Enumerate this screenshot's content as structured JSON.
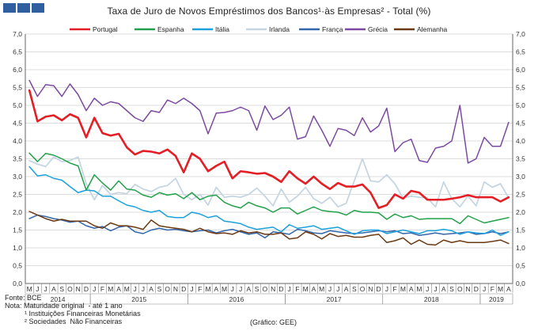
{
  "logo": {
    "icon": "bank-logo-icon",
    "color": "#2f5f9e"
  },
  "chart_data": {
    "type": "line",
    "title": "Taxa de Juro de Novos Empréstimos dos Bancos¹·às Empresas² - Total (%)",
    "y_ticks": [
      "0,0",
      "0,5",
      "1,0",
      "1,5",
      "2,0",
      "2,5",
      "3,0",
      "3,5",
      "4,0",
      "4,5",
      "5,0",
      "5,5",
      "6,0",
      "6,5",
      "7,0"
    ],
    "ylim": [
      0,
      7
    ],
    "grid": "horizontal",
    "legend_position": "top",
    "month_labels": [
      "M",
      "J",
      "J",
      "A",
      "S",
      "O",
      "N",
      "D",
      "J",
      "F",
      "M",
      "A",
      "M",
      "J",
      "J",
      "A",
      "S",
      "O",
      "N",
      "D",
      "J",
      "F",
      "M",
      "A",
      "M",
      "J",
      "J",
      "A",
      "S",
      "O",
      "N",
      "D",
      "J",
      "F",
      "M",
      "A",
      "M",
      "J",
      "J",
      "A",
      "S",
      "O",
      "N",
      "D",
      "J",
      "F",
      "M",
      "A",
      "M",
      "J",
      "J",
      "A",
      "S",
      "O",
      "N",
      "D",
      "J",
      "F",
      "M",
      "A"
    ],
    "years": [
      {
        "label": "2014",
        "start": 0,
        "end": 7
      },
      {
        "label": "2015",
        "start": 8,
        "end": 19
      },
      {
        "label": "2016",
        "start": 20,
        "end": 31
      },
      {
        "label": "2017",
        "start": 32,
        "end": 43
      },
      {
        "label": "2018",
        "start": 44,
        "end": 55
      },
      {
        "label": "2019",
        "start": 56,
        "end": 59
      }
    ],
    "series": [
      {
        "name": "Portugal",
        "color": "#e31e24",
        "width": 2.6,
        "values": [
          5.42,
          4.55,
          4.68,
          4.72,
          4.58,
          4.75,
          4.65,
          4.1,
          4.65,
          4.22,
          4.15,
          4.2,
          3.82,
          3.62,
          3.72,
          3.7,
          3.65,
          3.76,
          3.58,
          3.12,
          3.65,
          3.5,
          3.15,
          3.3,
          3.42,
          2.95,
          3.15,
          3.12,
          3.08,
          3.1,
          3.0,
          2.85,
          3.15,
          2.95,
          2.8,
          3.0,
          2.8,
          2.65,
          2.82,
          2.72,
          2.72,
          2.78,
          2.55,
          2.12,
          2.2,
          2.5,
          2.38,
          2.6,
          2.55,
          2.35,
          2.35,
          2.35,
          2.38,
          2.42,
          2.48,
          2.42,
          2.42,
          2.42,
          2.3,
          2.42
        ]
      },
      {
        "name": "Espanha",
        "color": "#22a04b",
        "width": 1.5,
        "values": [
          3.66,
          3.42,
          3.65,
          3.6,
          3.5,
          3.38,
          3.3,
          2.62,
          3.05,
          2.82,
          2.62,
          2.88,
          2.65,
          2.62,
          2.48,
          2.42,
          2.55,
          2.48,
          2.52,
          2.38,
          2.55,
          2.35,
          2.45,
          2.48,
          2.28,
          2.18,
          2.12,
          2.28,
          2.18,
          2.12,
          2.0,
          2.12,
          2.12,
          1.95,
          2.05,
          2.15,
          2.05,
          2.02,
          2.0,
          1.92,
          2.05,
          2.0,
          2.0,
          1.98,
          1.8,
          1.95,
          1.85,
          1.9,
          1.8,
          1.82,
          1.82,
          1.82,
          1.82,
          1.68,
          1.9,
          1.8,
          1.7,
          1.75,
          1.8,
          1.85
        ]
      },
      {
        "name": "Itália",
        "color": "#1ba1dc",
        "width": 1.5,
        "values": [
          3.28,
          3.02,
          3.05,
          2.95,
          2.9,
          2.72,
          2.55,
          2.62,
          2.6,
          2.45,
          2.45,
          2.32,
          2.2,
          2.15,
          2.05,
          2.0,
          2.05,
          1.88,
          1.85,
          1.85,
          2.0,
          1.95,
          1.85,
          1.9,
          1.75,
          1.72,
          1.68,
          1.58,
          1.52,
          1.55,
          1.58,
          1.45,
          1.65,
          1.55,
          1.58,
          1.62,
          1.52,
          1.55,
          1.58,
          1.48,
          1.38,
          1.48,
          1.5,
          1.5,
          1.4,
          1.45,
          1.5,
          1.45,
          1.4,
          1.48,
          1.48,
          1.52,
          1.48,
          1.38,
          1.45,
          1.42,
          1.4,
          1.5,
          1.35,
          1.45
        ]
      },
      {
        "name": "Irlanda",
        "color": "#c5d6e2",
        "width": 1.8,
        "values": [
          3.45,
          3.35,
          3.28,
          3.55,
          3.42,
          3.45,
          3.55,
          2.8,
          2.35,
          2.75,
          2.5,
          2.55,
          2.52,
          2.78,
          2.65,
          2.58,
          2.7,
          2.75,
          2.95,
          2.5,
          2.35,
          2.5,
          2.2,
          2.7,
          2.42,
          2.45,
          2.42,
          2.5,
          2.68,
          2.45,
          2.18,
          2.65,
          2.28,
          2.45,
          2.7,
          2.38,
          2.25,
          2.42,
          2.15,
          2.25,
          2.88,
          3.5,
          2.88,
          2.85,
          3.05,
          2.8,
          2.4,
          2.45,
          2.42,
          2.4,
          2.15,
          2.85,
          2.38,
          2.15,
          2.45,
          2.18,
          2.85,
          2.7,
          2.8,
          2.4
        ]
      },
      {
        "name": "França",
        "color": "#3366aa",
        "width": 1.5,
        "values": [
          1.82,
          1.92,
          1.88,
          1.82,
          1.78,
          1.72,
          1.75,
          1.62,
          1.55,
          1.6,
          1.48,
          1.58,
          1.62,
          1.45,
          1.4,
          1.5,
          1.55,
          1.5,
          1.52,
          1.48,
          1.45,
          1.48,
          1.5,
          1.42,
          1.48,
          1.52,
          1.45,
          1.38,
          1.42,
          1.28,
          1.45,
          1.42,
          1.38,
          1.52,
          1.48,
          1.42,
          1.4,
          1.48,
          1.45,
          1.42,
          1.4,
          1.42,
          1.45,
          1.48,
          1.45,
          1.48,
          1.4,
          1.42,
          1.35,
          1.38,
          1.42,
          1.38,
          1.4,
          1.42,
          1.45,
          1.38,
          1.4,
          1.45,
          1.4,
          1.45
        ]
      },
      {
        "name": "Grécia",
        "color": "#7b4aa0",
        "width": 1.5,
        "values": [
          5.7,
          5.25,
          5.58,
          5.55,
          5.25,
          5.6,
          5.3,
          4.85,
          5.2,
          5.0,
          5.1,
          5.05,
          4.85,
          4.65,
          4.55,
          4.85,
          4.8,
          5.15,
          5.05,
          5.2,
          5.05,
          4.85,
          4.2,
          4.78,
          4.8,
          4.85,
          4.95,
          4.85,
          4.3,
          4.98,
          4.6,
          4.72,
          4.95,
          4.05,
          4.12,
          4.7,
          4.3,
          3.85,
          4.35,
          4.3,
          4.15,
          4.65,
          4.25,
          4.42,
          4.92,
          3.7,
          3.95,
          4.05,
          3.45,
          3.4,
          3.8,
          3.85,
          4.0,
          5.0,
          3.38,
          3.5,
          4.1,
          3.85,
          3.85,
          4.52
        ]
      },
      {
        "name": "Alemanha",
        "color": "#6b3a13",
        "width": 1.5,
        "values": [
          2.02,
          1.92,
          1.82,
          1.75,
          1.8,
          1.75,
          1.75,
          1.75,
          1.62,
          1.55,
          1.7,
          1.62,
          1.62,
          1.58,
          1.52,
          1.78,
          1.62,
          1.58,
          1.55,
          1.52,
          1.45,
          1.55,
          1.45,
          1.4,
          1.42,
          1.38,
          1.48,
          1.42,
          1.45,
          1.38,
          1.38,
          1.42,
          1.25,
          1.28,
          1.45,
          1.38,
          1.25,
          1.4,
          1.32,
          1.35,
          1.3,
          1.3,
          1.35,
          1.38,
          1.15,
          1.2,
          1.28,
          1.1,
          1.22,
          1.1,
          1.08,
          1.22,
          1.15,
          1.2,
          1.15,
          1.15,
          1.15,
          1.18,
          1.22,
          1.12
        ]
      }
    ]
  },
  "footer": {
    "source": "Fonte: BCE",
    "note": "Nota: Maturidade original  - até 1 ano",
    "footnote1": "          ¹ Instituições Financeiras Monetárias",
    "footnote2": "          ² Sociedades  Não Financeiras",
    "credit": "(Gráfico: GEE)"
  }
}
